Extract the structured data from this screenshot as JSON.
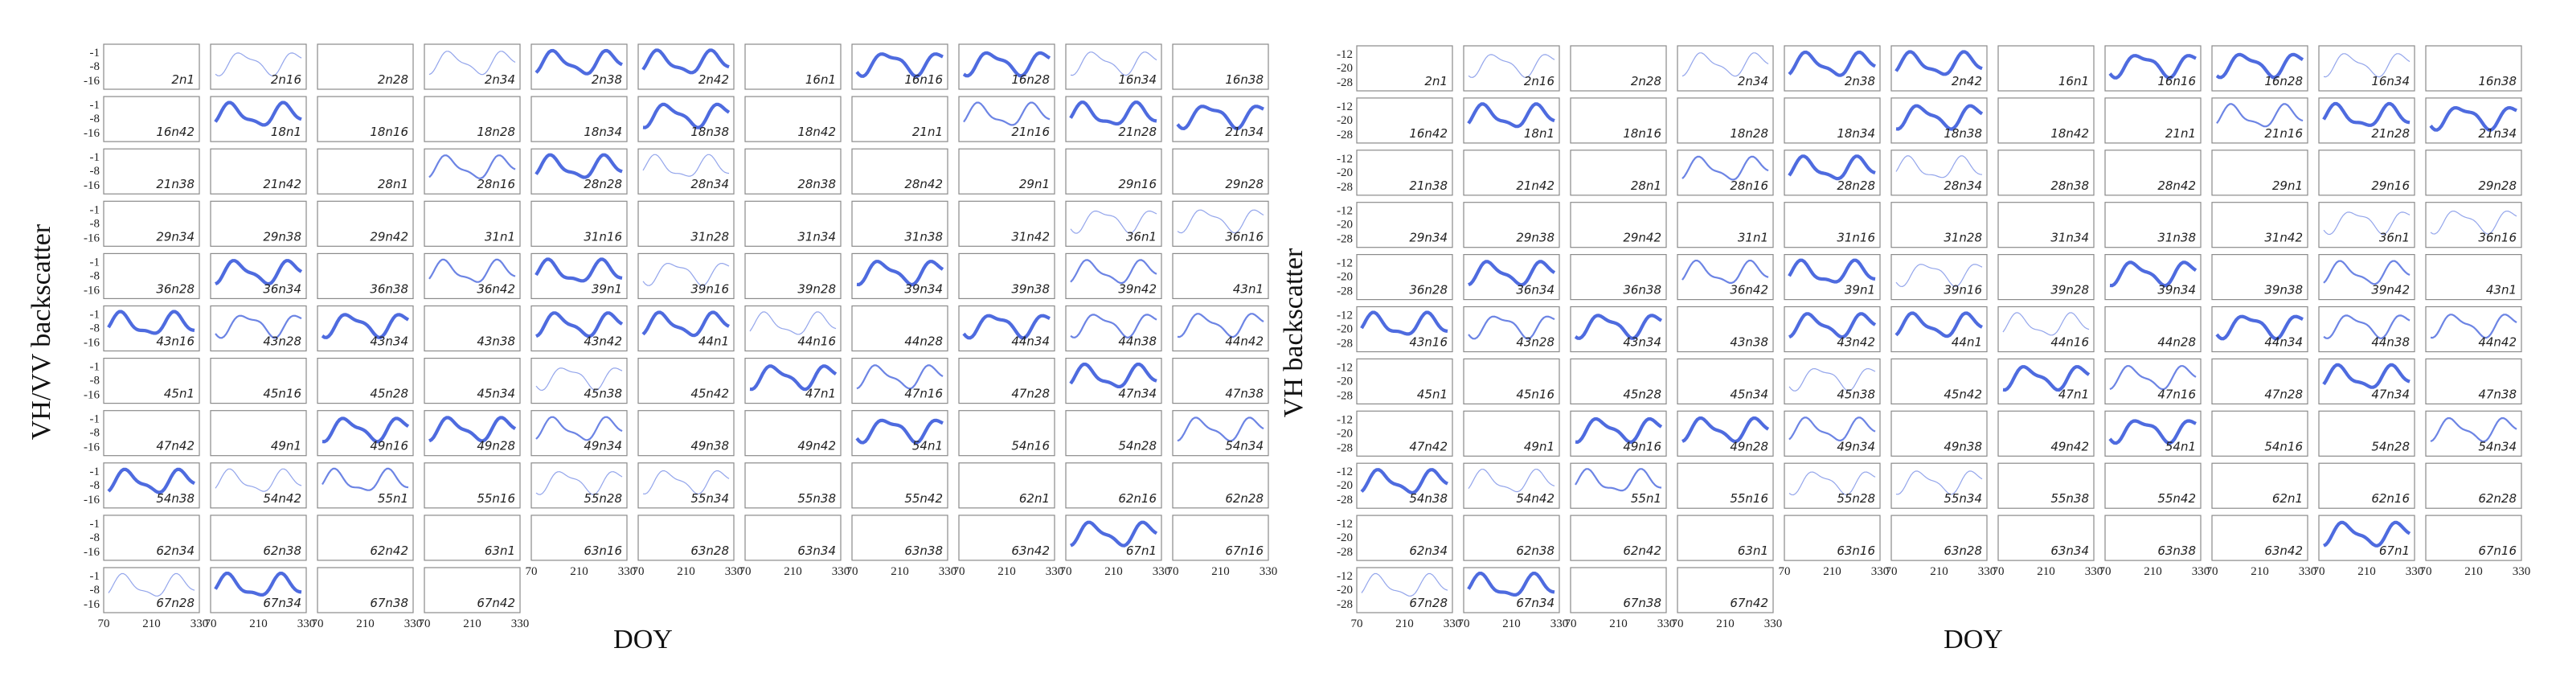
{
  "chart_data": [
    {
      "type": "line",
      "ylabel": "VH/VV backscatter",
      "xlabel": "DOY",
      "x_ticks": [
        70,
        210,
        330
      ],
      "y_ticks": [
        -1,
        -8,
        -16
      ],
      "x_range": [
        70,
        330
      ],
      "y_range": [
        -16,
        -1
      ],
      "series_color": "#3b5bdb",
      "panels": [
        {
          "label": "2n1",
          "v": 0
        },
        {
          "label": "2n16",
          "v": 1
        },
        {
          "label": "2n28",
          "v": 0
        },
        {
          "label": "2n34",
          "v": 1
        },
        {
          "label": "2n38",
          "v": 3
        },
        {
          "label": "2n42",
          "v": 3
        },
        {
          "label": "16n1",
          "v": 0
        },
        {
          "label": "16n16",
          "v": 3
        },
        {
          "label": "16n28",
          "v": 3
        },
        {
          "label": "16n34",
          "v": 1
        },
        {
          "label": "16n38",
          "v": 0
        },
        {
          "label": "16n42",
          "v": 0
        },
        {
          "label": "18n1",
          "v": 3
        },
        {
          "label": "18n16",
          "v": 0
        },
        {
          "label": "18n28",
          "v": 0
        },
        {
          "label": "18n34",
          "v": 0
        },
        {
          "label": "18n38",
          "v": 3
        },
        {
          "label": "18n42",
          "v": 0
        },
        {
          "label": "21n1",
          "v": 0
        },
        {
          "label": "21n16",
          "v": 2
        },
        {
          "label": "21n28",
          "v": 3
        },
        {
          "label": "21n34",
          "v": 3
        },
        {
          "label": "21n38",
          "v": 0
        },
        {
          "label": "21n42",
          "v": 0
        },
        {
          "label": "28n1",
          "v": 0
        },
        {
          "label": "28n16",
          "v": 2
        },
        {
          "label": "28n28",
          "v": 3
        },
        {
          "label": "28n34",
          "v": 1
        },
        {
          "label": "28n38",
          "v": 0
        },
        {
          "label": "28n42",
          "v": 0
        },
        {
          "label": "29n1",
          "v": 0
        },
        {
          "label": "29n16",
          "v": 0
        },
        {
          "label": "29n28",
          "v": 0
        },
        {
          "label": "29n34",
          "v": 0
        },
        {
          "label": "29n38",
          "v": 0
        },
        {
          "label": "29n42",
          "v": 0
        },
        {
          "label": "31n1",
          "v": 0
        },
        {
          "label": "31n16",
          "v": 0
        },
        {
          "label": "31n28",
          "v": 0
        },
        {
          "label": "31n34",
          "v": 0
        },
        {
          "label": "31n38",
          "v": 0
        },
        {
          "label": "31n42",
          "v": 0
        },
        {
          "label": "36n1",
          "v": 1
        },
        {
          "label": "36n16",
          "v": 1
        },
        {
          "label": "36n28",
          "v": 0
        },
        {
          "label": "36n34",
          "v": 3
        },
        {
          "label": "36n38",
          "v": 0
        },
        {
          "label": "36n42",
          "v": 2
        },
        {
          "label": "39n1",
          "v": 3
        },
        {
          "label": "39n16",
          "v": 1
        },
        {
          "label": "39n28",
          "v": 0
        },
        {
          "label": "39n34",
          "v": 3
        },
        {
          "label": "39n38",
          "v": 0
        },
        {
          "label": "39n42",
          "v": 2
        },
        {
          "label": "43n1",
          "v": 0
        },
        {
          "label": "43n16",
          "v": 3
        },
        {
          "label": "43n28",
          "v": 2
        },
        {
          "label": "43n34",
          "v": 3
        },
        {
          "label": "43n38",
          "v": 0
        },
        {
          "label": "43n42",
          "v": 3
        },
        {
          "label": "44n1",
          "v": 3
        },
        {
          "label": "44n16",
          "v": 1
        },
        {
          "label": "44n28",
          "v": 0
        },
        {
          "label": "44n34",
          "v": 3
        },
        {
          "label": "44n38",
          "v": 2
        },
        {
          "label": "44n42",
          "v": 2
        },
        {
          "label": "45n1",
          "v": 0
        },
        {
          "label": "45n16",
          "v": 0
        },
        {
          "label": "45n28",
          "v": 0
        },
        {
          "label": "45n34",
          "v": 0
        },
        {
          "label": "45n38",
          "v": 1
        },
        {
          "label": "45n42",
          "v": 0
        },
        {
          "label": "47n1",
          "v": 3
        },
        {
          "label": "47n16",
          "v": 2
        },
        {
          "label": "47n28",
          "v": 0
        },
        {
          "label": "47n34",
          "v": 3
        },
        {
          "label": "47n38",
          "v": 0
        },
        {
          "label": "47n42",
          "v": 0
        },
        {
          "label": "49n1",
          "v": 0
        },
        {
          "label": "49n16",
          "v": 3
        },
        {
          "label": "49n28",
          "v": 3
        },
        {
          "label": "49n34",
          "v": 2
        },
        {
          "label": "49n38",
          "v": 0
        },
        {
          "label": "49n42",
          "v": 0
        },
        {
          "label": "54n1",
          "v": 3
        },
        {
          "label": "54n16",
          "v": 0
        },
        {
          "label": "54n28",
          "v": 0
        },
        {
          "label": "54n34",
          "v": 2
        },
        {
          "label": "54n38",
          "v": 3
        },
        {
          "label": "54n42",
          "v": 1
        },
        {
          "label": "55n1",
          "v": 2
        },
        {
          "label": "55n16",
          "v": 0
        },
        {
          "label": "55n28",
          "v": 1
        },
        {
          "label": "55n34",
          "v": 1
        },
        {
          "label": "55n38",
          "v": 0
        },
        {
          "label": "55n42",
          "v": 0
        },
        {
          "label": "62n1",
          "v": 0
        },
        {
          "label": "62n16",
          "v": 0
        },
        {
          "label": "62n28",
          "v": 0
        },
        {
          "label": "62n34",
          "v": 0
        },
        {
          "label": "62n38",
          "v": 0
        },
        {
          "label": "62n42",
          "v": 0
        },
        {
          "label": "63n1",
          "v": 0
        },
        {
          "label": "63n16",
          "v": 0
        },
        {
          "label": "63n28",
          "v": 0
        },
        {
          "label": "63n34",
          "v": 0
        },
        {
          "label": "63n38",
          "v": 0
        },
        {
          "label": "63n42",
          "v": 0
        },
        {
          "label": "67n1",
          "v": 3
        },
        {
          "label": "67n16",
          "v": 0
        },
        {
          "label": "67n28",
          "v": 1
        },
        {
          "label": "67n34",
          "v": 3
        },
        {
          "label": "67n38",
          "v": 0
        },
        {
          "label": "67n42",
          "v": 0
        }
      ]
    },
    {
      "type": "line",
      "ylabel": "VH backscatter",
      "xlabel": "DOY",
      "x_ticks": [
        70,
        210,
        330
      ],
      "y_ticks": [
        -12,
        -20,
        -28
      ],
      "x_range": [
        70,
        330
      ],
      "y_range": [
        -28,
        -12
      ],
      "series_color": "#3b5bdb",
      "panels": [
        {
          "label": "2n1",
          "v": 0
        },
        {
          "label": "2n16",
          "v": 1
        },
        {
          "label": "2n28",
          "v": 0
        },
        {
          "label": "2n34",
          "v": 1
        },
        {
          "label": "2n38",
          "v": 3
        },
        {
          "label": "2n42",
          "v": 3
        },
        {
          "label": "16n1",
          "v": 0
        },
        {
          "label": "16n16",
          "v": 3
        },
        {
          "label": "16n28",
          "v": 3
        },
        {
          "label": "16n34",
          "v": 1
        },
        {
          "label": "16n38",
          "v": 0
        },
        {
          "label": "16n42",
          "v": 0
        },
        {
          "label": "18n1",
          "v": 3
        },
        {
          "label": "18n16",
          "v": 0
        },
        {
          "label": "18n28",
          "v": 0
        },
        {
          "label": "18n34",
          "v": 0
        },
        {
          "label": "18n38",
          "v": 3
        },
        {
          "label": "18n42",
          "v": 0
        },
        {
          "label": "21n1",
          "v": 0
        },
        {
          "label": "21n16",
          "v": 2
        },
        {
          "label": "21n28",
          "v": 3
        },
        {
          "label": "21n34",
          "v": 3
        },
        {
          "label": "21n38",
          "v": 0
        },
        {
          "label": "21n42",
          "v": 0
        },
        {
          "label": "28n1",
          "v": 0
        },
        {
          "label": "28n16",
          "v": 2
        },
        {
          "label": "28n28",
          "v": 3
        },
        {
          "label": "28n34",
          "v": 1
        },
        {
          "label": "28n38",
          "v": 0
        },
        {
          "label": "28n42",
          "v": 0
        },
        {
          "label": "29n1",
          "v": 0
        },
        {
          "label": "29n16",
          "v": 0
        },
        {
          "label": "29n28",
          "v": 0
        },
        {
          "label": "29n34",
          "v": 0
        },
        {
          "label": "29n38",
          "v": 0
        },
        {
          "label": "29n42",
          "v": 0
        },
        {
          "label": "31n1",
          "v": 0
        },
        {
          "label": "31n16",
          "v": 0
        },
        {
          "label": "31n28",
          "v": 0
        },
        {
          "label": "31n34",
          "v": 0
        },
        {
          "label": "31n38",
          "v": 0
        },
        {
          "label": "31n42",
          "v": 0
        },
        {
          "label": "36n1",
          "v": 1
        },
        {
          "label": "36n16",
          "v": 1
        },
        {
          "label": "36n28",
          "v": 0
        },
        {
          "label": "36n34",
          "v": 3
        },
        {
          "label": "36n38",
          "v": 0
        },
        {
          "label": "36n42",
          "v": 2
        },
        {
          "label": "39n1",
          "v": 3
        },
        {
          "label": "39n16",
          "v": 1
        },
        {
          "label": "39n28",
          "v": 0
        },
        {
          "label": "39n34",
          "v": 3
        },
        {
          "label": "39n38",
          "v": 0
        },
        {
          "label": "39n42",
          "v": 2
        },
        {
          "label": "43n1",
          "v": 0
        },
        {
          "label": "43n16",
          "v": 3
        },
        {
          "label": "43n28",
          "v": 2
        },
        {
          "label": "43n34",
          "v": 3
        },
        {
          "label": "43n38",
          "v": 0
        },
        {
          "label": "43n42",
          "v": 3
        },
        {
          "label": "44n1",
          "v": 3
        },
        {
          "label": "44n16",
          "v": 1
        },
        {
          "label": "44n28",
          "v": 0
        },
        {
          "label": "44n34",
          "v": 3
        },
        {
          "label": "44n38",
          "v": 2
        },
        {
          "label": "44n42",
          "v": 2
        },
        {
          "label": "45n1",
          "v": 0
        },
        {
          "label": "45n16",
          "v": 0
        },
        {
          "label": "45n28",
          "v": 0
        },
        {
          "label": "45n34",
          "v": 0
        },
        {
          "label": "45n38",
          "v": 1
        },
        {
          "label": "45n42",
          "v": 0
        },
        {
          "label": "47n1",
          "v": 3
        },
        {
          "label": "47n16",
          "v": 2
        },
        {
          "label": "47n28",
          "v": 0
        },
        {
          "label": "47n34",
          "v": 3
        },
        {
          "label": "47n38",
          "v": 0
        },
        {
          "label": "47n42",
          "v": 0
        },
        {
          "label": "49n1",
          "v": 0
        },
        {
          "label": "49n16",
          "v": 3
        },
        {
          "label": "49n28",
          "v": 3
        },
        {
          "label": "49n34",
          "v": 2
        },
        {
          "label": "49n38",
          "v": 0
        },
        {
          "label": "49n42",
          "v": 0
        },
        {
          "label": "54n1",
          "v": 3
        },
        {
          "label": "54n16",
          "v": 0
        },
        {
          "label": "54n28",
          "v": 0
        },
        {
          "label": "54n34",
          "v": 2
        },
        {
          "label": "54n38",
          "v": 3
        },
        {
          "label": "54n42",
          "v": 1
        },
        {
          "label": "55n1",
          "v": 2
        },
        {
          "label": "55n16",
          "v": 0
        },
        {
          "label": "55n28",
          "v": 1
        },
        {
          "label": "55n34",
          "v": 1
        },
        {
          "label": "55n38",
          "v": 0
        },
        {
          "label": "55n42",
          "v": 0
        },
        {
          "label": "62n1",
          "v": 0
        },
        {
          "label": "62n16",
          "v": 0
        },
        {
          "label": "62n28",
          "v": 0
        },
        {
          "label": "62n34",
          "v": 0
        },
        {
          "label": "62n38",
          "v": 0
        },
        {
          "label": "62n42",
          "v": 0
        },
        {
          "label": "63n1",
          "v": 0
        },
        {
          "label": "63n16",
          "v": 0
        },
        {
          "label": "63n28",
          "v": 0
        },
        {
          "label": "63n34",
          "v": 0
        },
        {
          "label": "63n38",
          "v": 0
        },
        {
          "label": "63n42",
          "v": 0
        },
        {
          "label": "67n1",
          "v": 3
        },
        {
          "label": "67n16",
          "v": 0
        },
        {
          "label": "67n28",
          "v": 1
        },
        {
          "label": "67n34",
          "v": 3
        },
        {
          "label": "67n38",
          "v": 0
        },
        {
          "label": "67n42",
          "v": 0
        }
      ]
    }
  ]
}
